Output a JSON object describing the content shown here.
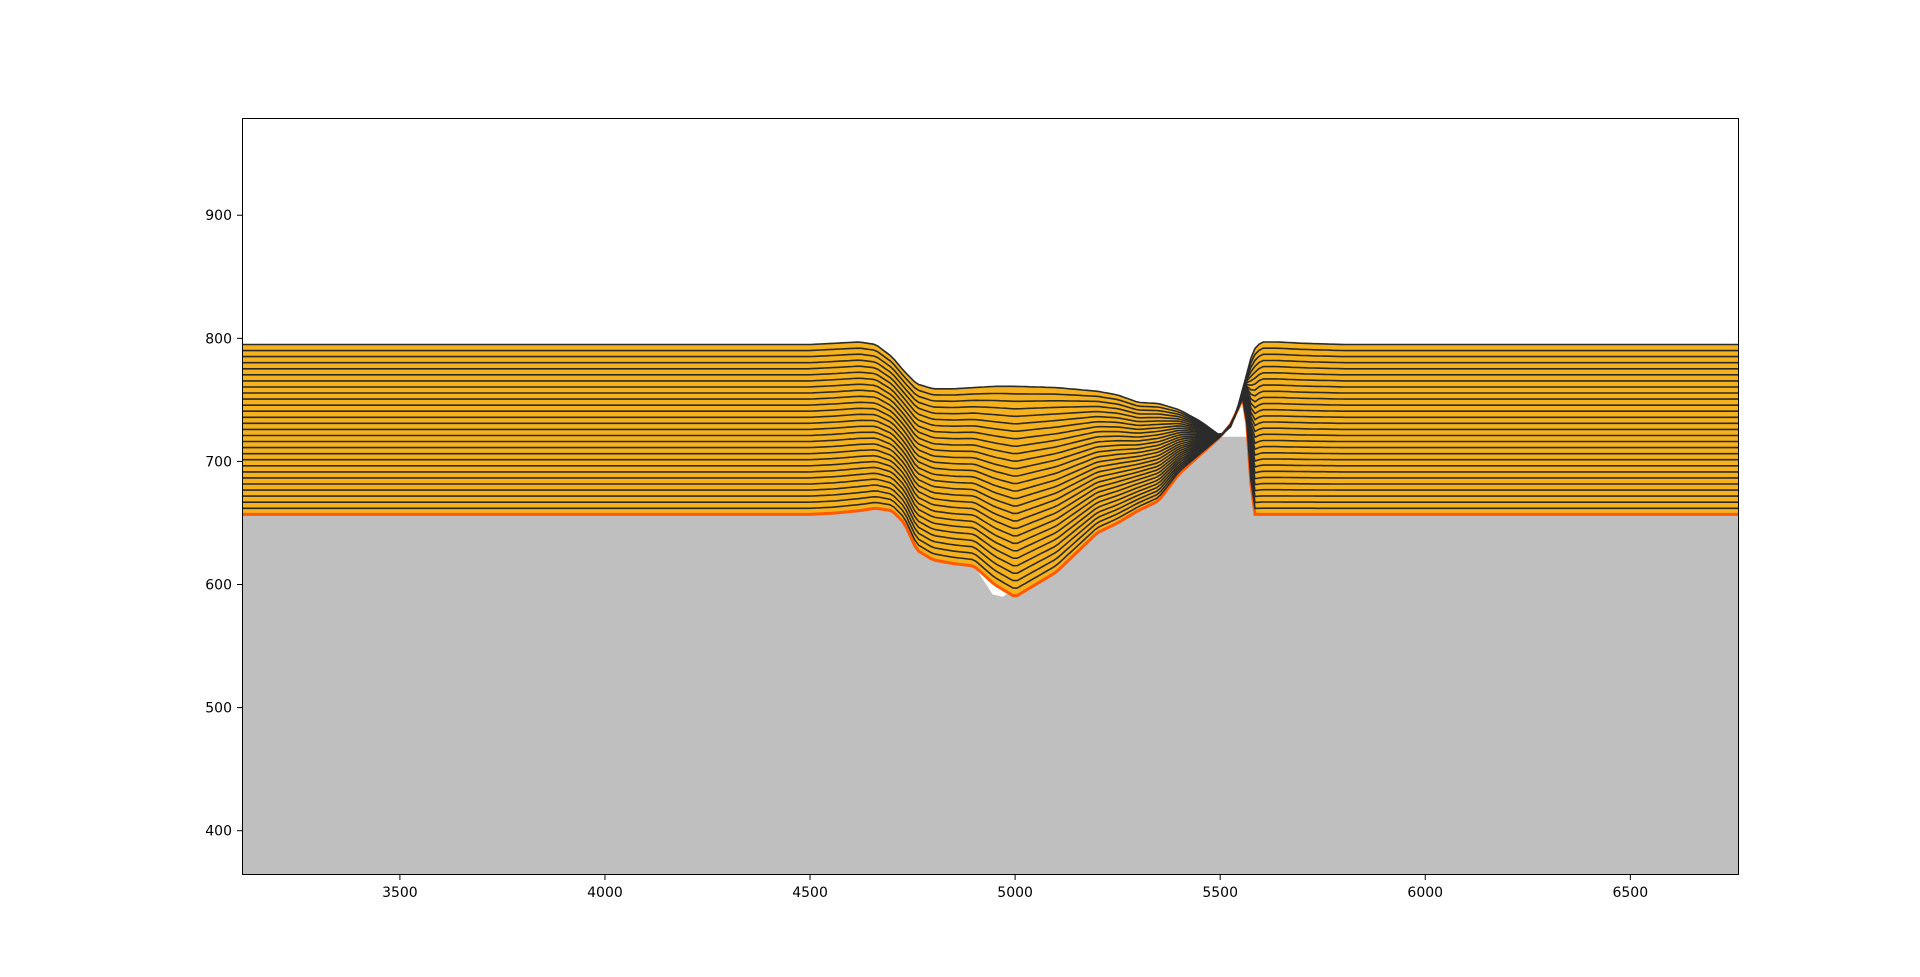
{
  "chart_data": {
    "type": "area",
    "title": "",
    "xlabel": "",
    "ylabel": "",
    "xlim": [
      3115,
      6765
    ],
    "ylim": [
      364,
      979
    ],
    "xticks": [
      3500,
      4000,
      4500,
      5000,
      5500,
      6000,
      6500
    ],
    "yticks": [
      400,
      500,
      600,
      700,
      800,
      900
    ],
    "grid": false,
    "legend": "none",
    "colors": {
      "basement": "#bfbfbf",
      "layer_fill": "#f5b21c",
      "layer_line": "#2b2b2b",
      "erosion_edge": "#ff5a00",
      "frame": "#000000"
    },
    "basement": {
      "x": [
        3115,
        4500,
        4620,
        4680,
        4710,
        4730,
        4760,
        4800,
        4850,
        4900,
        4920,
        4945,
        4970,
        5000,
        5060,
        5100,
        5200,
        5300,
        5400,
        5480,
        5500,
        6765
      ],
      "y": [
        657,
        657,
        660,
        662,
        660,
        650,
        628,
        620,
        617,
        615,
        605,
        592,
        590,
        597,
        610,
        620,
        642,
        660,
        690,
        713,
        720,
        720
      ]
    },
    "layers": {
      "count": 28,
      "base": 657,
      "top": 795,
      "profile_x": [
        3115,
        4500,
        4560,
        4620,
        4660,
        4700,
        4730,
        4760,
        4800,
        4850,
        4900,
        4950,
        5000,
        5100,
        5200,
        5250,
        5300,
        5350,
        5400,
        5450,
        5500,
        5525,
        5540,
        5560,
        5580,
        5600,
        5640,
        5700,
        5800,
        6765
      ],
      "profile_top": [
        795,
        795,
        796,
        797,
        795,
        785,
        773,
        763,
        759,
        759,
        760,
        761,
        761,
        760,
        757,
        754,
        748,
        747,
        742,
        733,
        721,
        728,
        740,
        765,
        790,
        797,
        797,
        796,
        795,
        795
      ],
      "profile_bot": [
        657,
        657,
        658,
        660,
        662,
        660,
        650,
        628,
        620,
        617,
        615,
        600,
        590,
        610,
        642,
        650,
        660,
        668,
        690,
        705,
        720,
        730,
        740,
        755,
        657,
        657,
        657,
        657,
        657,
        657
      ]
    }
  }
}
